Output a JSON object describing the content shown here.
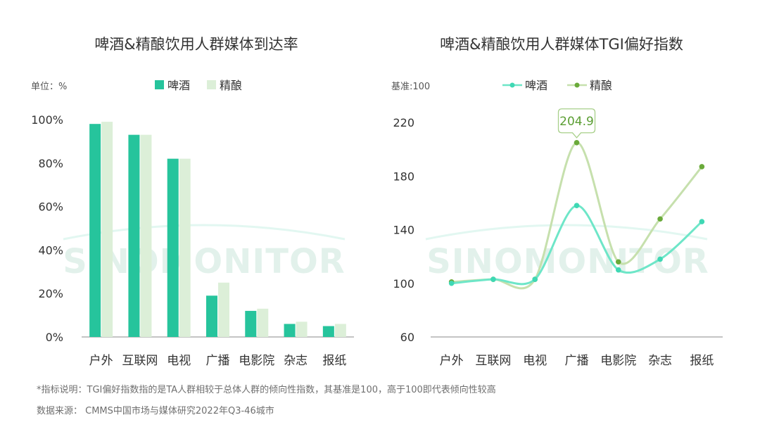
{
  "watermark": "SINOMONITOR",
  "colors": {
    "beer": "#26c49c",
    "craft": "#dcefd8",
    "beer_line": "#6ee6c8",
    "craft_line": "#c6e0ad",
    "craft_dot": "#6aaa3a",
    "callout": "#5b9e33",
    "grid_axis": "#8a8a8a",
    "text": "#333333"
  },
  "footnote": "*指标说明：TGI偏好指数指的是TA人群相较于总体人群的倾向性指数，其基准是100，高于100即代表倾向性较高",
  "source": "数据来源： CMMS中国市场与媒体研究2022年Q3-46城市",
  "chart_data": [
    {
      "type": "bar",
      "title": "啤酒&精酿饮用人群媒体到达率",
      "unit_label": "单位：%",
      "categories": [
        "户外",
        "互联网",
        "电视",
        "广播",
        "电影院",
        "杂志",
        "报纸"
      ],
      "series": [
        {
          "name": "啤酒",
          "values": [
            98,
            93,
            82,
            19,
            12,
            6,
            5
          ]
        },
        {
          "name": "精酿",
          "values": [
            99,
            93,
            82,
            25,
            13,
            7,
            6
          ]
        }
      ],
      "ylim": [
        0,
        100
      ],
      "yticks": [
        0,
        20,
        40,
        60,
        80,
        100
      ],
      "ytick_labels": [
        "0%",
        "20%",
        "40%",
        "60%",
        "80%",
        "100%"
      ],
      "legend": "top-center",
      "grid": false
    },
    {
      "type": "line",
      "title": "啤酒&精酿饮用人群媒体TGI偏好指数",
      "unit_label": "基准:100",
      "categories": [
        "户外",
        "互联网",
        "电视",
        "广播",
        "电影院",
        "杂志",
        "报纸"
      ],
      "series": [
        {
          "name": "啤酒",
          "values": [
            100,
            103,
            103,
            158,
            110,
            118,
            146
          ]
        },
        {
          "name": "精酿",
          "values": [
            101,
            103,
            103,
            204.9,
            116,
            148,
            187
          ]
        }
      ],
      "ylim": [
        60,
        220
      ],
      "yticks": [
        60,
        100,
        140,
        180,
        220
      ],
      "ytick_labels": [
        "60",
        "100",
        "140",
        "180",
        "220"
      ],
      "annotation": {
        "series": 1,
        "index": 3,
        "text": "204.9"
      },
      "legend": "top-center",
      "grid": false,
      "smooth": true
    }
  ]
}
